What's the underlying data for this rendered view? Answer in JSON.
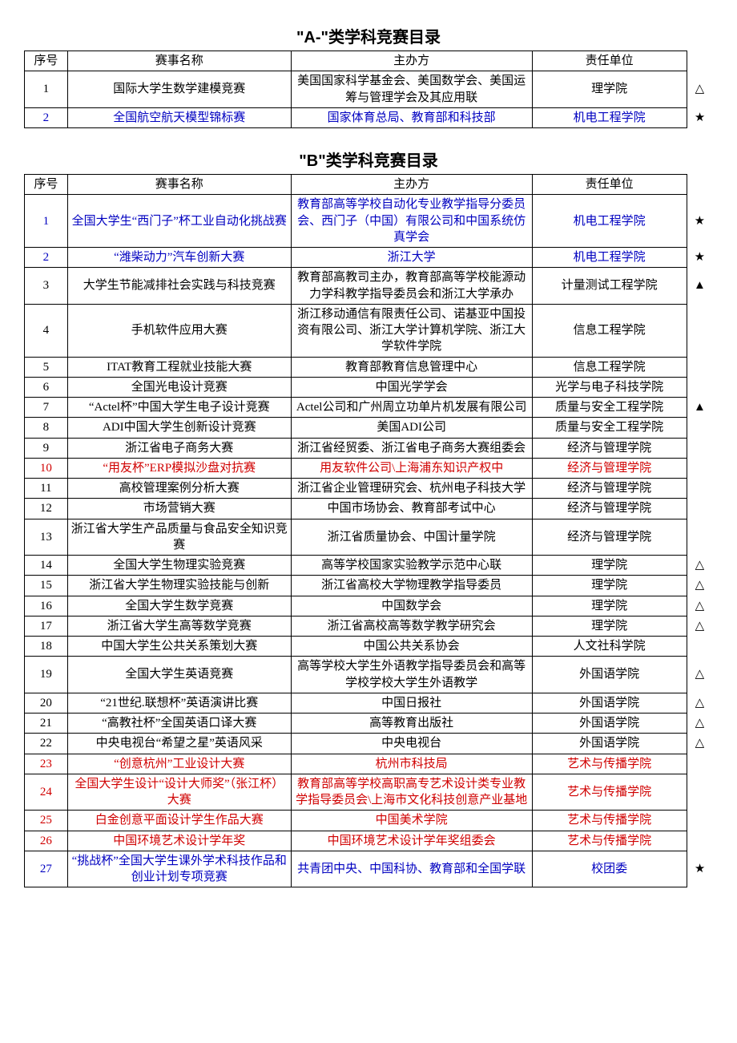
{
  "tableA": {
    "title": "\"A-\"类学科竞赛目录",
    "headers": {
      "sn": "序号",
      "name": "赛事名称",
      "org": "主办方",
      "dept": "责任单位"
    },
    "rows": [
      {
        "sn": "1",
        "name": "国际大学生数学建模竞赛",
        "org": "美国国家科学基金会、美国数学会、美国运筹与管理学会及其应用联",
        "dept": "理学院",
        "mark": "△",
        "color": "black"
      },
      {
        "sn": "2",
        "name": "全国航空航天模型锦标赛",
        "org": "国家体育总局、教育部和科技部",
        "dept": "机电工程学院",
        "mark": "★",
        "color": "blue"
      }
    ]
  },
  "tableB": {
    "title": "\"B\"类学科竞赛目录",
    "headers": {
      "sn": "序号",
      "name": "赛事名称",
      "org": "主办方",
      "dept": "责任单位"
    },
    "rows": [
      {
        "sn": "1",
        "name": "全国大学生“西门子”杯工业自动化挑战赛",
        "org": "教育部高等学校自动化专业教学指导分委员会、西门子（中国）有限公司和中国系统仿真学会",
        "dept": "机电工程学院",
        "mark": "★",
        "color": "blue"
      },
      {
        "sn": "2",
        "name": "“潍柴动力”汽车创新大赛",
        "org": "浙江大学",
        "dept": "机电工程学院",
        "mark": "★",
        "color": "blue"
      },
      {
        "sn": "3",
        "name": "大学生节能减排社会实践与科技竞赛",
        "org": "教育部高教司主办，教育部高等学校能源动力学科教学指导委员会和浙江大学承办",
        "dept": "计量测试工程学院",
        "mark": "▲",
        "color": "black"
      },
      {
        "sn": "4",
        "name": "手机软件应用大赛",
        "org": "浙江移动通信有限责任公司、诺基亚中国投资有限公司、浙江大学计算机学院、浙江大学软件学院",
        "dept": "信息工程学院",
        "mark": "",
        "color": "black"
      },
      {
        "sn": "5",
        "name": "ITAT教育工程就业技能大赛",
        "org": "教育部教育信息管理中心",
        "dept": "信息工程学院",
        "mark": "",
        "color": "black"
      },
      {
        "sn": "6",
        "name": "全国光电设计竞赛",
        "org": "中国光学学会",
        "dept": "光学与电子科技学院",
        "mark": "",
        "color": "black"
      },
      {
        "sn": "7",
        "name": "“Actel杯”中国大学生电子设计竞赛",
        "org": "Actel公司和广州周立功单片机发展有限公司",
        "dept": "质量与安全工程学院",
        "mark": "▲",
        "color": "black"
      },
      {
        "sn": "8",
        "name": "ADI中国大学生创新设计竞赛",
        "org": "美国ADI公司",
        "dept": "质量与安全工程学院",
        "mark": "",
        "color": "black"
      },
      {
        "sn": "9",
        "name": "浙江省电子商务大赛",
        "org": "浙江省经贸委、浙江省电子商务大赛组委会",
        "dept": "经济与管理学院",
        "mark": "",
        "color": "black"
      },
      {
        "sn": "10",
        "name": "“用友杯”ERP模拟沙盘对抗赛",
        "org": "用友软件公司\\上海浦东知识产权中",
        "dept": "经济与管理学院",
        "mark": "",
        "color": "red"
      },
      {
        "sn": "11",
        "name": "高校管理案例分析大赛",
        "org": "浙江省企业管理研究会、杭州电子科技大学",
        "dept": "经济与管理学院",
        "mark": "",
        "color": "black"
      },
      {
        "sn": "12",
        "name": "市场营销大赛",
        "org": "中国市场协会、教育部考试中心",
        "dept": "经济与管理学院",
        "mark": "",
        "color": "black"
      },
      {
        "sn": "13",
        "name": "浙江省大学生产品质量与食品安全知识竞赛",
        "org": "浙江省质量协会、中国计量学院",
        "dept": "经济与管理学院",
        "mark": "",
        "color": "black"
      },
      {
        "sn": "14",
        "name": "全国大学生物理实验竞赛",
        "org": "高等学校国家实验教学示范中心联",
        "dept": "理学院",
        "mark": "△",
        "color": "black"
      },
      {
        "sn": "15",
        "name": "浙江省大学生物理实验技能与创新",
        "org": "浙江省高校大学物理教学指导委员",
        "dept": "理学院",
        "mark": "△",
        "color": "black"
      },
      {
        "sn": "16",
        "name": "全国大学生数学竞赛",
        "org": "中国数学会",
        "dept": "理学院",
        "mark": "△",
        "color": "black"
      },
      {
        "sn": "17",
        "name": "浙江省大学生高等数学竞赛",
        "org": "浙江省高校高等数学教学研究会",
        "dept": "理学院",
        "mark": "△",
        "color": "black"
      },
      {
        "sn": "18",
        "name": "中国大学生公共关系策划大赛",
        "org": "中国公共关系协会",
        "dept": "人文社科学院",
        "mark": "",
        "color": "black"
      },
      {
        "sn": "19",
        "name": "全国大学生英语竞赛",
        "org": "高等学校大学生外语教学指导委员会和高等学校学校大学生外语教学",
        "dept": "外国语学院",
        "mark": "△",
        "color": "black"
      },
      {
        "sn": "20",
        "name": "“21世纪.联想杯”英语演讲比赛",
        "org": "中国日报社",
        "dept": "外国语学院",
        "mark": "△",
        "color": "black"
      },
      {
        "sn": "21",
        "name": "“高教社杯”全国英语口译大赛",
        "org": "高等教育出版社",
        "dept": "外国语学院",
        "mark": "△",
        "color": "black"
      },
      {
        "sn": "22",
        "name": "中央电视台“希望之星”英语风采",
        "org": "中央电视台",
        "dept": "外国语学院",
        "mark": "△",
        "color": "black"
      },
      {
        "sn": "23",
        "name": "“创意杭州”工业设计大赛",
        "org": "杭州市科技局",
        "dept": "艺术与传播学院",
        "mark": "",
        "color": "red"
      },
      {
        "sn": "24",
        "name": "全国大学生设计“设计大师奖”（张江杯）大赛",
        "org": "教育部高等学校高职高专艺术设计类专业教学指导委员会\\上海市文化科技创意产业基地",
        "dept": "艺术与传播学院",
        "mark": "",
        "color": "red"
      },
      {
        "sn": "25",
        "name": "白金创意平面设计学生作品大赛",
        "org": "中国美术学院",
        "dept": "艺术与传播学院",
        "mark": "",
        "color": "red"
      },
      {
        "sn": "26",
        "name": "中国环境艺术设计学年奖",
        "org": "中国环境艺术设计学年奖组委会",
        "dept": "艺术与传播学院",
        "mark": "",
        "color": "red"
      },
      {
        "sn": "27",
        "name": "“挑战杯”全国大学生课外学术科技作品和创业计划专项竞赛",
        "org": "共青团中央、中国科协、教育部和全国学联",
        "dept": "校团委",
        "mark": "★",
        "color": "blue"
      }
    ]
  },
  "colors": {
    "blue": "#0000c0",
    "red": "#d00000",
    "black": "#000000"
  }
}
